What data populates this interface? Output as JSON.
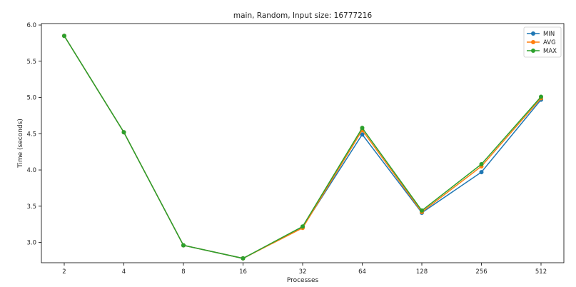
{
  "chart_data": {
    "type": "line",
    "title": "main, Random, Input size: 16777216",
    "xlabel": "Processes",
    "ylabel": "Time (seconds)",
    "categories": [
      "2",
      "4",
      "8",
      "16",
      "32",
      "64",
      "128",
      "256",
      "512"
    ],
    "ylim": [
      2.72,
      6.02
    ],
    "yticks": [
      "3.0",
      "3.5",
      "4.0",
      "4.5",
      "5.0",
      "5.5",
      "6.0"
    ],
    "grid": false,
    "legend_position": "top-right",
    "series": [
      {
        "name": "MIN",
        "color": "#1f77b4",
        "values": [
          5.85,
          4.52,
          2.96,
          2.78,
          3.21,
          4.49,
          3.41,
          3.97,
          4.97
        ]
      },
      {
        "name": "AVG",
        "color": "#ff7f0e",
        "values": [
          5.85,
          4.52,
          2.96,
          2.78,
          3.2,
          4.55,
          3.42,
          4.05,
          4.99
        ]
      },
      {
        "name": "MAX",
        "color": "#2ca02c",
        "values": [
          5.85,
          4.52,
          2.96,
          2.78,
          3.22,
          4.58,
          3.44,
          4.08,
          5.01
        ]
      }
    ]
  }
}
